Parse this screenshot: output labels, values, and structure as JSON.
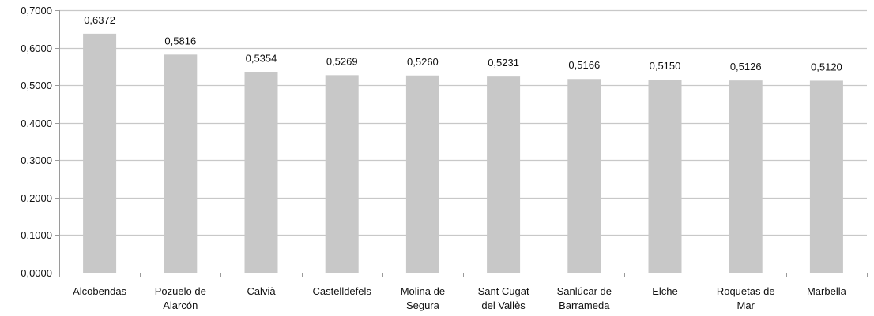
{
  "chart_data": {
    "type": "bar",
    "categories": [
      [
        "Alcobendas"
      ],
      [
        "Pozuelo de",
        "Alarcón"
      ],
      [
        "Calvià"
      ],
      [
        "Castelldefels"
      ],
      [
        "Molina de",
        "Segura"
      ],
      [
        "Sant Cugat",
        "del Vallès"
      ],
      [
        "Sanlúcar de",
        "Barrameda"
      ],
      [
        "Elche"
      ],
      [
        "Roquetas de",
        "Mar"
      ],
      [
        "Marbella"
      ]
    ],
    "values": [
      0.6372,
      0.5816,
      0.5354,
      0.5269,
      0.526,
      0.5231,
      0.5166,
      0.515,
      0.5126,
      0.512
    ],
    "data_labels": [
      "0,6372",
      "0,5816",
      "0,5354",
      "0,5269",
      "0,5260",
      "0,5231",
      "0,5166",
      "0,5150",
      "0,5126",
      "0,5120"
    ],
    "y_ticks": [
      0,
      0.1,
      0.2,
      0.3,
      0.4,
      0.5,
      0.6,
      0.7
    ],
    "y_tick_labels": [
      "0,0000",
      "0,1000",
      "0,2000",
      "0,3000",
      "0,4000",
      "0,5000",
      "0,6000",
      "0,7000"
    ],
    "ylim": [
      0,
      0.7
    ],
    "title": "",
    "xlabel": "",
    "ylabel": "",
    "grid": true,
    "legend": "none",
    "colors": {
      "bar": "#c8c8c8",
      "grid": "#c8c8c8",
      "axis": "#9a9a9a",
      "text": "#111111"
    }
  }
}
